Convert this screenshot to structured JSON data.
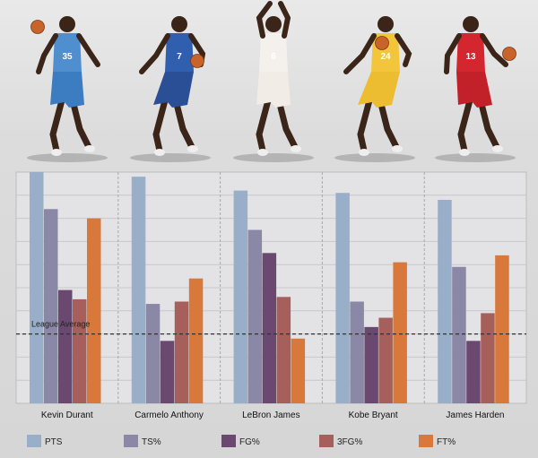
{
  "chart_data": {
    "type": "bar",
    "categories": [
      "Kevin Durant",
      "Carmelo Anthony",
      "LeBron James",
      "Kobe Bryant",
      "James Harden"
    ],
    "series": [
      {
        "name": "PTS",
        "color": "#99aec9",
        "values": [
          100,
          98,
          92,
          91,
          88
        ]
      },
      {
        "name": "TS%",
        "color": "#8a88a6",
        "values": [
          84,
          43,
          75,
          44,
          59
        ]
      },
      {
        "name": "FG%",
        "color": "#6a4870",
        "values": [
          49,
          27,
          65,
          33,
          27
        ]
      },
      {
        "name": "3FG%",
        "color": "#a65f5a",
        "values": [
          45,
          44,
          46,
          37,
          39
        ]
      },
      {
        "name": "FT%",
        "color": "#d8783a",
        "values": [
          80,
          54,
          28,
          61,
          64
        ]
      }
    ],
    "ylim": [
      0,
      100
    ],
    "reference_line": {
      "label": "League Average",
      "value": 30
    },
    "grid": true,
    "legend_position": "bottom"
  },
  "players": [
    {
      "name": "Kevin Durant",
      "jersey": "#4f8fd0",
      "shorts": "#3c7cc0",
      "number": "35"
    },
    {
      "name": "Carmelo Anthony",
      "jersey": "#2f5fae",
      "shorts": "#2a4f97",
      "number": "7"
    },
    {
      "name": "LeBron James",
      "jersey": "#f4f1ec",
      "shorts": "#f1ede6",
      "number": "6"
    },
    {
      "name": "Kobe Bryant",
      "jersey": "#f3c53a",
      "shorts": "#ecbd30",
      "number": "24"
    },
    {
      "name": "James Harden",
      "jersey": "#d3262f",
      "shorts": "#c3212a",
      "number": "13"
    }
  ]
}
